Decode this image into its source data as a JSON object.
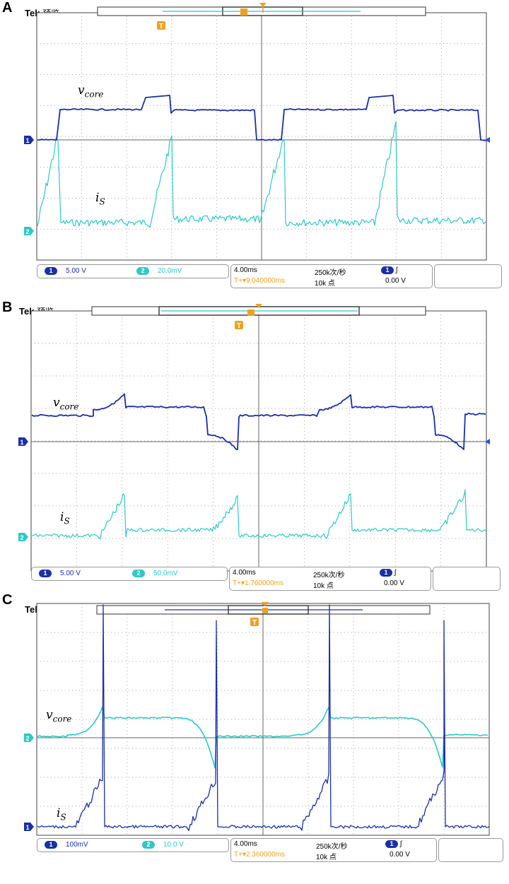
{
  "chart_data": [
    {
      "type": "line",
      "panel_label": "A",
      "header": {
        "brand": "Tek",
        "mode": "预览"
      },
      "marker_T": "T",
      "trace1": {
        "label": "vcore_main",
        "sub": "core",
        "name_v": "v",
        "color": "#1a2fa8"
      },
      "trace2": {
        "label": "is_main",
        "sub": "S",
        "name_v": "i",
        "color": "#2ec8c8"
      },
      "status": {
        "ch1_num": "1",
        "ch1_scale": "5.00 V",
        "ch2_num": "2",
        "ch2_scale": "20.0mV",
        "timebase": "4.00ms",
        "sample_rate": "250k次/秒",
        "trigger_pos": "9.040000ms",
        "record": "10k 点",
        "trig_ch": "1",
        "trig_level": "0.00 V"
      }
    },
    {
      "type": "line",
      "panel_label": "B",
      "header": {
        "brand": "Tek",
        "mode": "预览"
      },
      "marker_T": "T",
      "trace1": {
        "sub": "core",
        "name_v": "v",
        "color": "#1a2fa8"
      },
      "trace2": {
        "sub": "S",
        "name_v": "i",
        "color": "#2ec8c8"
      },
      "status": {
        "ch1_num": "1",
        "ch1_scale": "5.00 V",
        "ch2_num": "2",
        "ch2_scale": "50.0mV",
        "timebase": "4.00ms",
        "sample_rate": "250k次/秒",
        "trigger_pos": "1.760000ms",
        "record": "10k 点",
        "trig_ch": "1",
        "trig_level": "0.00 V"
      }
    },
    {
      "type": "line",
      "panel_label": "C",
      "header": {
        "brand": "Tek",
        "mode": "预览"
      },
      "marker_T": "T",
      "trace1": {
        "sub": "core",
        "name_v": "v",
        "color": "#2ec8c8"
      },
      "trace2": {
        "sub": "S",
        "name_v": "i",
        "color": "#1a2fa8"
      },
      "status": {
        "ch1_num": "1",
        "ch1_scale": "100mV",
        "ch2_num": "2",
        "ch2_scale": "10.0 V",
        "timebase": "4.00ms",
        "sample_rate": "250k次/秒",
        "trigger_pos": "2.360000ms",
        "record": "10k 点",
        "trig_ch": "1",
        "trig_level": "0.00 V"
      }
    }
  ],
  "colors": {
    "ch1": "#1a2fa8",
    "ch2": "#2ec8c8",
    "trigger": "#f0a020",
    "grid": "#888888"
  }
}
